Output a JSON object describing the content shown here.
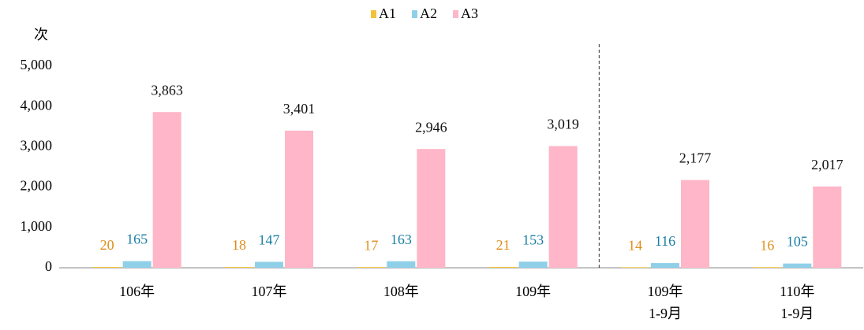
{
  "chart_data": {
    "type": "bar",
    "y_label": "次",
    "categories": [
      "106年",
      "107年",
      "108年",
      "109年",
      "109年\n1-9月",
      "110年\n1-9月"
    ],
    "series": [
      {
        "name": "A1",
        "color": "#f3c13a",
        "label_color": "#e08e1b",
        "values": [
          20,
          18,
          17,
          21,
          14,
          16
        ]
      },
      {
        "name": "A2",
        "color": "#8fd0e8",
        "label_color": "#1b7fa3",
        "values": [
          165,
          147,
          163,
          153,
          116,
          105
        ]
      },
      {
        "name": "A3",
        "color": "#ffb6c8",
        "label_color": "#111111",
        "values": [
          3863,
          3401,
          2946,
          3019,
          2177,
          2017
        ],
        "value_labels": [
          "3,863",
          "3,401",
          "2,946",
          "3,019",
          "2,177",
          "2,017"
        ]
      }
    ],
    "ylim": [
      0,
      5000
    ],
    "yticks": [
      0,
      {
        "value": 1000,
        "label": "1,000"
      },
      {
        "value": 2000,
        "label": "2,000"
      },
      {
        "value": 3000,
        "label": "3,000"
      },
      {
        "value": 4000,
        "label": "4,000"
      },
      {
        "value": 5000,
        "label": "5,000"
      }
    ],
    "legend": "top",
    "grid": false
  }
}
